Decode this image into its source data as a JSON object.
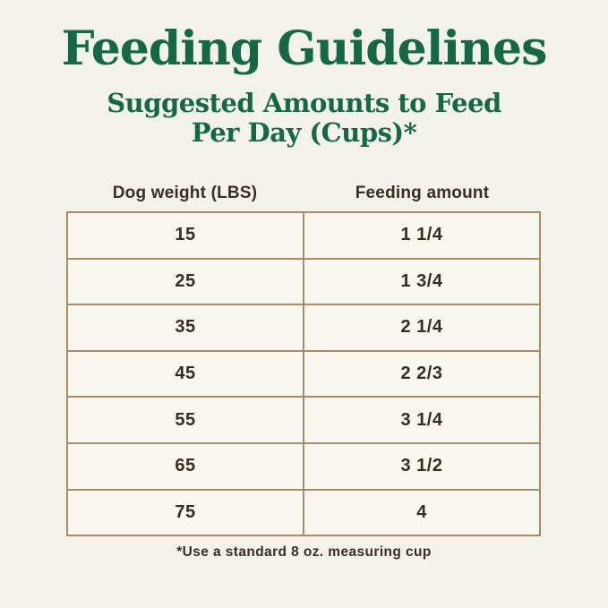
{
  "page": {
    "background_color": "#f2f1ea",
    "accent_green": "#156747",
    "border_tan": "#a68c64",
    "text_brown": "#362c22",
    "title": "Feeding Guidelines",
    "subtitle_line1": "Suggested Amounts to Feed",
    "subtitle_line2": "Per Day (Cups)*",
    "footnote": "*Use a standard 8 oz. measuring cup"
  },
  "table": {
    "columns": {
      "weight": "Dog weight (LBS)",
      "amount": "Feeding amount"
    },
    "rows": [
      {
        "weight": "15",
        "amount": "1 1/4"
      },
      {
        "weight": "25",
        "amount": "1 3/4"
      },
      {
        "weight": "35",
        "amount": "2 1/4"
      },
      {
        "weight": "45",
        "amount": "2 2/3"
      },
      {
        "weight": "55",
        "amount": "3 1/4"
      },
      {
        "weight": "65",
        "amount": "3 1/2"
      },
      {
        "weight": "75",
        "amount": "4"
      }
    ]
  },
  "chart_data": {
    "type": "table",
    "title": "Feeding Guidelines",
    "subtitle": "Suggested Amounts to Feed Per Day (Cups)*",
    "columns": [
      "Dog weight (LBS)",
      "Feeding amount"
    ],
    "rows": [
      [
        "15",
        "1 1/4"
      ],
      [
        "25",
        "1 3/4"
      ],
      [
        "35",
        "2 1/4"
      ],
      [
        "45",
        "2 2/3"
      ],
      [
        "55",
        "3 1/4"
      ],
      [
        "65",
        "3 1/2"
      ],
      [
        "75",
        "4"
      ]
    ],
    "footnote": "*Use a standard 8 oz. measuring cup"
  }
}
